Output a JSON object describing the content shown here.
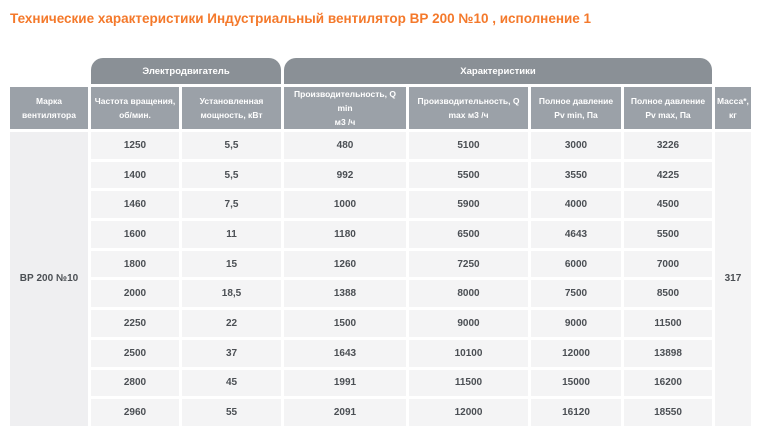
{
  "title": "Технические характеристики Индустриальный вентилятор ВР 200 №10 , исполнение 1",
  "colors": {
    "title": "#f4792b",
    "group_header_bg": "#8a9096",
    "column_header_bg": "#9ba1a8",
    "cell_bg": "#f4f4f5",
    "span_cell_bg": "#efeff1",
    "cell_text": "#4b4f54",
    "header_text": "#ffffff"
  },
  "table": {
    "group_headers": [
      {
        "label": "Электродвигатель"
      },
      {
        "label": "Характеристики"
      }
    ],
    "columns": [
      {
        "line1": "Марка",
        "line2": "вентилятора"
      },
      {
        "line1": "Частота вращения,",
        "line2": "об/мин."
      },
      {
        "line1": "Установленная",
        "line2": "мощность, кВт"
      },
      {
        "line1": "Производительность, Q min",
        "line2": "м3 /ч"
      },
      {
        "line1": "Производительность, Q",
        "line2": "max м3 /ч"
      },
      {
        "line1": "Полное давление",
        "line2": "Pv min, Па"
      },
      {
        "line1": "Полное давление",
        "line2": "Pv max, Па"
      },
      {
        "line1": "Масса*,",
        "line2": "кг"
      }
    ],
    "fan_model": "ВР 200 №10",
    "mass": "317",
    "rows": [
      [
        "1250",
        "5,5",
        "480",
        "5100",
        "3000",
        "3226"
      ],
      [
        "1400",
        "5,5",
        "992",
        "5500",
        "3550",
        "4225"
      ],
      [
        "1460",
        "7,5",
        "1000",
        "5900",
        "4000",
        "4500"
      ],
      [
        "1600",
        "11",
        "1180",
        "6500",
        "4643",
        "5500"
      ],
      [
        "1800",
        "15",
        "1260",
        "7250",
        "6000",
        "7000"
      ],
      [
        "2000",
        "18,5",
        "1388",
        "8000",
        "7500",
        "8500"
      ],
      [
        "2250",
        "22",
        "1500",
        "9000",
        "9000",
        "11500"
      ],
      [
        "2500",
        "37",
        "1643",
        "10100",
        "12000",
        "13898"
      ],
      [
        "2800",
        "45",
        "1991",
        "11500",
        "15000",
        "16200"
      ],
      [
        "2960",
        "55",
        "2091",
        "12000",
        "16120",
        "18550"
      ]
    ]
  }
}
